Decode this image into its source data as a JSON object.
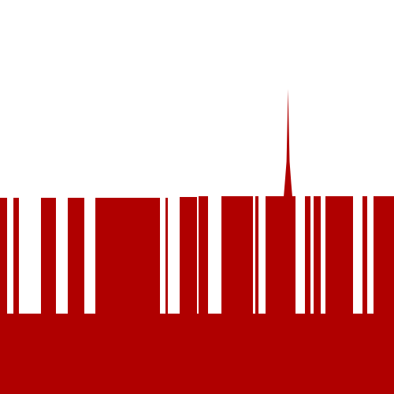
{
  "artwork": {
    "subject": "barcode-skyline",
    "colors": {
      "background": "#ffffff",
      "ink": "#b00000"
    }
  }
}
